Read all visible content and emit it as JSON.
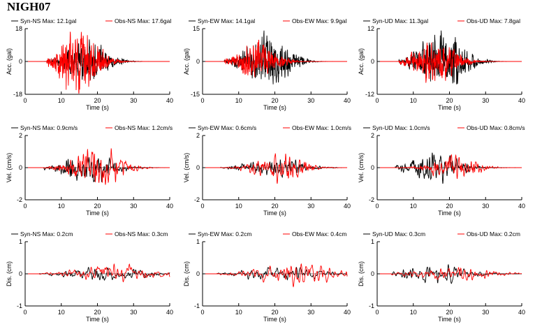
{
  "title": "NIGH07",
  "colors": {
    "syn": "#000000",
    "obs": "#ff0000"
  },
  "chart_data": [
    {
      "type": "line",
      "row": "acc",
      "component": "NS",
      "ylabel": "Acc. (gal)",
      "xlabel": "Time (s)",
      "xlim": [
        0,
        40
      ],
      "ylim": [
        -18,
        18
      ],
      "xticks": [
        "0",
        "10",
        "20",
        "30",
        "40"
      ],
      "yticks": [
        "18",
        "0",
        "-18"
      ],
      "legend": [
        {
          "label": "Syn-NS  Max: 12.1gal",
          "series": "syn"
        },
        {
          "label": "Obs-NS  Max: 17.6gal",
          "series": "obs"
        }
      ],
      "series": [
        {
          "key": "syn",
          "peak": 12.1,
          "start": 6.0,
          "centre": 17.0,
          "width": 7.0,
          "cutoff": 7.0,
          "seed": 11
        },
        {
          "key": "obs",
          "peak": 17.6,
          "start": 6.0,
          "centre": 15.0,
          "width": 6.5,
          "cutoff": 7.0,
          "seed": 12
        }
      ]
    },
    {
      "type": "line",
      "row": "acc",
      "component": "EW",
      "ylabel": "Acc. (gal)",
      "xlabel": "Time (s)",
      "xlim": [
        0,
        40
      ],
      "ylim": [
        -15,
        15
      ],
      "xticks": [
        "0",
        "10",
        "20",
        "30",
        "40"
      ],
      "yticks": [
        "15",
        "0",
        "-15"
      ],
      "legend": [
        {
          "label": "Syn-EW  Max: 14.1gal",
          "series": "syn"
        },
        {
          "label": "Obs-EW  Max: 9.9gal",
          "series": "obs"
        }
      ],
      "series": [
        {
          "key": "syn",
          "peak": 14.1,
          "start": 6.0,
          "centre": 18.0,
          "width": 7.0,
          "cutoff": 7.0,
          "seed": 21
        },
        {
          "key": "obs",
          "peak": 9.9,
          "start": 6.0,
          "centre": 15.0,
          "width": 6.5,
          "cutoff": 7.0,
          "seed": 22
        }
      ]
    },
    {
      "type": "line",
      "row": "acc",
      "component": "UD",
      "ylabel": "Acc. (gal)",
      "xlabel": "Time (s)",
      "xlim": [
        0,
        40
      ],
      "ylim": [
        -12,
        12
      ],
      "xticks": [
        "0",
        "10",
        "20",
        "30",
        "40"
      ],
      "yticks": [
        "12",
        "0",
        "-12"
      ],
      "legend": [
        {
          "label": "Syn-UD  Max: 11.3gal",
          "series": "syn"
        },
        {
          "label": "Obs-UD  Max: 7.8gal",
          "series": "obs"
        }
      ],
      "series": [
        {
          "key": "syn",
          "peak": 11.3,
          "start": 6.0,
          "centre": 18.0,
          "width": 7.5,
          "cutoff": 7.0,
          "seed": 31
        },
        {
          "key": "obs",
          "peak": 7.8,
          "start": 6.0,
          "centre": 16.0,
          "width": 7.0,
          "cutoff": 7.0,
          "seed": 32
        }
      ]
    },
    {
      "type": "line",
      "row": "vel",
      "component": "NS",
      "ylabel": "Vel. (cm/s)",
      "xlabel": "Time (s)",
      "xlim": [
        0,
        40
      ],
      "ylim": [
        -2,
        2
      ],
      "xticks": [
        "0",
        "10",
        "20",
        "30",
        "40"
      ],
      "yticks": [
        "2",
        "0",
        "-2"
      ],
      "legend": [
        {
          "label": "Syn-NS  Max: 0.9cm/s",
          "series": "syn"
        },
        {
          "label": "Obs-NS  Max: 1.2cm/s",
          "series": "obs"
        }
      ],
      "series": [
        {
          "key": "syn",
          "peak": 0.9,
          "start": 5.0,
          "centre": 17.0,
          "width": 8.0,
          "cutoff": 1.4,
          "seed": 41
        },
        {
          "key": "obs",
          "peak": 1.2,
          "start": 5.0,
          "centre": 20.0,
          "width": 8.0,
          "cutoff": 1.4,
          "seed": 42
        }
      ]
    },
    {
      "type": "line",
      "row": "vel",
      "component": "EW",
      "ylabel": "Vel. (cm/s)",
      "xlabel": "Time (s)",
      "xlim": [
        0,
        40
      ],
      "ylim": [
        -2,
        2
      ],
      "xticks": [
        "0",
        "10",
        "20",
        "30",
        "40"
      ],
      "yticks": [
        "2",
        "0",
        "-2"
      ],
      "legend": [
        {
          "label": "Syn-EW  Max: 0.6cm/s",
          "series": "syn"
        },
        {
          "label": "Obs-EW  Max: 1.0cm/s",
          "series": "obs"
        }
      ],
      "series": [
        {
          "key": "syn",
          "peak": 0.6,
          "start": 5.0,
          "centre": 20.0,
          "width": 9.0,
          "cutoff": 1.4,
          "seed": 51
        },
        {
          "key": "obs",
          "peak": 1.0,
          "start": 5.0,
          "centre": 21.0,
          "width": 8.0,
          "cutoff": 1.4,
          "seed": 52
        }
      ]
    },
    {
      "type": "line",
      "row": "vel",
      "component": "UD",
      "ylabel": "Vel. (cm/s)",
      "xlabel": "Time (s)",
      "xlim": [
        0,
        40
      ],
      "ylim": [
        -2,
        2
      ],
      "xticks": [
        "0",
        "10",
        "20",
        "30",
        "40"
      ],
      "yticks": [
        "2",
        "0",
        "-2"
      ],
      "legend": [
        {
          "label": "Syn-UD  Max: 1.0cm/s",
          "series": "syn"
        },
        {
          "label": "Obs-UD  Max: 0.8cm/s",
          "series": "obs"
        }
      ],
      "series": [
        {
          "key": "syn",
          "peak": 1.0,
          "start": 5.0,
          "centre": 16.0,
          "width": 8.0,
          "cutoff": 1.4,
          "seed": 61
        },
        {
          "key": "obs",
          "peak": 0.8,
          "start": 5.0,
          "centre": 21.0,
          "width": 8.0,
          "cutoff": 1.4,
          "seed": 62
        }
      ]
    },
    {
      "type": "line",
      "row": "dis",
      "component": "NS",
      "ylabel": "Dis. (cm)",
      "xlabel": "Time (s)",
      "xlim": [
        0,
        40
      ],
      "ylim": [
        -1,
        1
      ],
      "xticks": [
        "0",
        "10",
        "20",
        "30",
        "40"
      ],
      "yticks": [
        "1",
        "0",
        "-1"
      ],
      "legend": [
        {
          "label": "Syn-NS  Max: 0.2cm",
          "series": "syn"
        },
        {
          "label": "Obs-NS  Max: 0.3cm",
          "series": "obs"
        }
      ],
      "series": [
        {
          "key": "syn",
          "peak": 0.2,
          "start": 4.0,
          "centre": 22.0,
          "width": 12.0,
          "cutoff": 0.35,
          "seed": 71
        },
        {
          "key": "obs",
          "peak": 0.3,
          "start": 4.0,
          "centre": 24.0,
          "width": 12.0,
          "cutoff": 0.35,
          "seed": 72
        }
      ]
    },
    {
      "type": "line",
      "row": "dis",
      "component": "EW",
      "ylabel": "Dis. (cm)",
      "xlabel": "Time (s)",
      "xlim": [
        0,
        40
      ],
      "ylim": [
        -1,
        1
      ],
      "xticks": [
        "0",
        "10",
        "20",
        "30",
        "40"
      ],
      "yticks": [
        "1",
        "0",
        "-1"
      ],
      "legend": [
        {
          "label": "Syn-EW  Max: 0.2cm",
          "series": "syn"
        },
        {
          "label": "Obs-EW  Max: 0.4cm",
          "series": "obs"
        }
      ],
      "series": [
        {
          "key": "syn",
          "peak": 0.2,
          "start": 4.0,
          "centre": 22.0,
          "width": 12.0,
          "cutoff": 0.35,
          "seed": 81
        },
        {
          "key": "obs",
          "peak": 0.4,
          "start": 4.0,
          "centre": 25.0,
          "width": 12.0,
          "cutoff": 0.35,
          "seed": 82
        }
      ]
    },
    {
      "type": "line",
      "row": "dis",
      "component": "UD",
      "ylabel": "Dis. (cm)",
      "xlabel": "Time (s)",
      "xlim": [
        0,
        40
      ],
      "ylim": [
        -1,
        1
      ],
      "xticks": [
        "0",
        "10",
        "20",
        "30",
        "40"
      ],
      "yticks": [
        "1",
        "0",
        "-1"
      ],
      "legend": [
        {
          "label": "Syn-UD  Max: 0.3cm",
          "series": "syn"
        },
        {
          "label": "Obs-UD  Max: 0.2cm",
          "series": "obs"
        }
      ],
      "series": [
        {
          "key": "syn",
          "peak": 0.3,
          "start": 4.0,
          "centre": 16.0,
          "width": 10.0,
          "cutoff": 0.35,
          "seed": 91
        },
        {
          "key": "obs",
          "peak": 0.2,
          "start": 4.0,
          "centre": 22.0,
          "width": 12.0,
          "cutoff": 0.35,
          "seed": 92
        }
      ]
    }
  ]
}
